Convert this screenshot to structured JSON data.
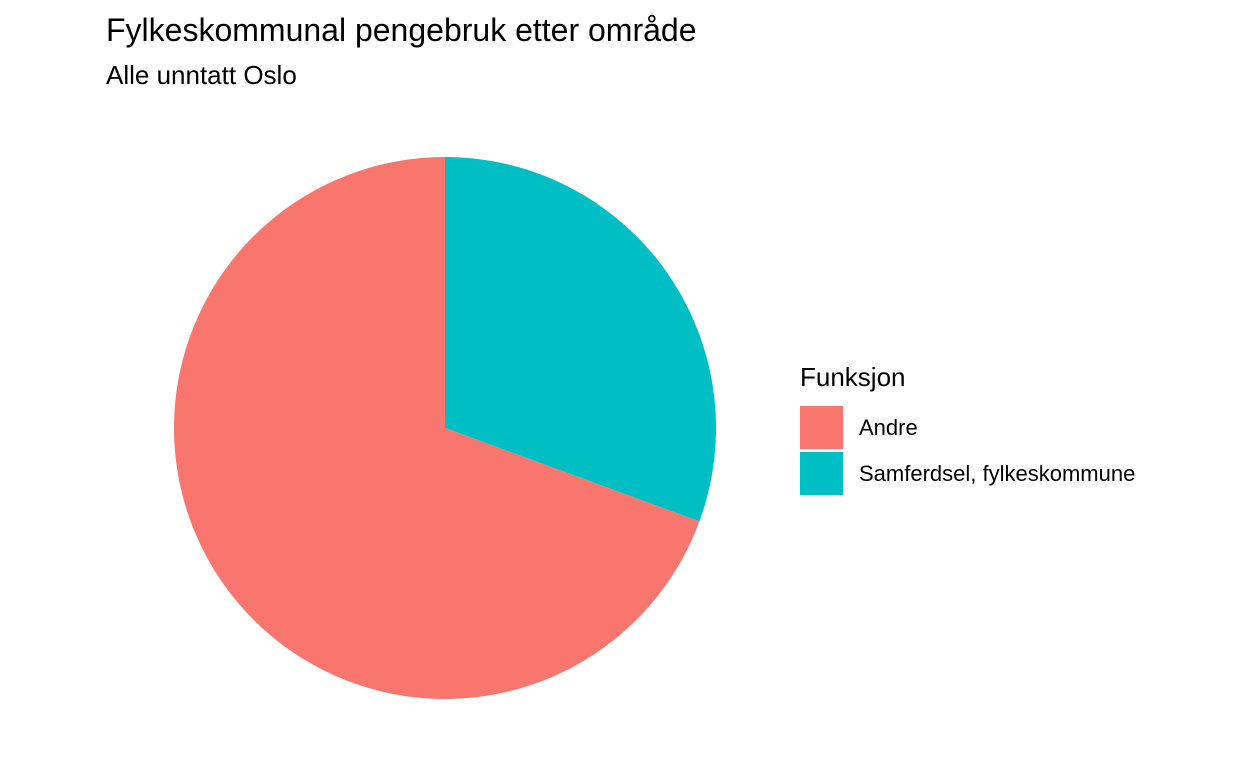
{
  "chart_data": {
    "type": "pie",
    "title": "Fylkeskommunal pengebruk etter område",
    "subtitle": "Alle unntatt Oslo",
    "legend_title": "Funksjon",
    "legend_position": "right",
    "categories": [
      "Samferdsel, fylkeskommune",
      "Andre"
    ],
    "values": [
      30.6,
      69.4
    ],
    "unit": "percent",
    "colors": [
      "#00BFC4",
      "#F8766D"
    ],
    "legend_order": [
      "Andre",
      "Samferdsel, fylkeskommune"
    ],
    "legend_colors": [
      "#F8766D",
      "#00BFC4"
    ]
  }
}
